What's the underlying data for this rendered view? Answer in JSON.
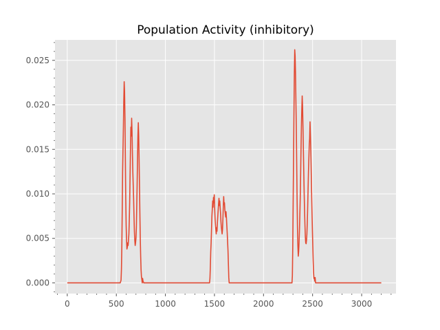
{
  "chart_data": {
    "type": "line",
    "title": "Population Activity (inhibitory)",
    "xlabel": "",
    "ylabel": "",
    "xlim": [
      -125,
      3350
    ],
    "ylim": [
      -0.0012,
      0.0273
    ],
    "xticks": [
      0,
      500,
      1000,
      1500,
      2000,
      2500,
      3000
    ],
    "xtick_labels": [
      "0",
      "500",
      "1000",
      "1500",
      "2000",
      "2500",
      "3000"
    ],
    "yticks": [
      0.0,
      0.005,
      0.01,
      0.015,
      0.02,
      0.025
    ],
    "ytick_labels": [
      "0.000",
      "0.005",
      "0.010",
      "0.015",
      "0.020",
      "0.025"
    ],
    "grid": true,
    "colors": {
      "line": "#e24a33",
      "background": "#e5e5e5",
      "grid": "#ffffff"
    },
    "series": [
      {
        "points": [
          [
            0,
            0
          ],
          [
            540,
            0
          ],
          [
            548,
            0.0003
          ],
          [
            552,
            0.0015
          ],
          [
            556,
            0.004
          ],
          [
            560,
            0.008
          ],
          [
            564,
            0.0125
          ],
          [
            568,
            0.015
          ],
          [
            572,
            0.0175
          ],
          [
            576,
            0.0205
          ],
          [
            580,
            0.0226
          ],
          [
            584,
            0.0215
          ],
          [
            588,
            0.0185
          ],
          [
            592,
            0.014
          ],
          [
            596,
            0.0095
          ],
          [
            600,
            0.0065
          ],
          [
            604,
            0.0048
          ],
          [
            608,
            0.0038
          ],
          [
            612,
            0.004
          ],
          [
            616,
            0.0045
          ],
          [
            620,
            0.0042
          ],
          [
            624,
            0.0048
          ],
          [
            628,
            0.0055
          ],
          [
            632,
            0.007
          ],
          [
            636,
            0.009
          ],
          [
            640,
            0.012
          ],
          [
            644,
            0.015
          ],
          [
            648,
            0.0175
          ],
          [
            652,
            0.0165
          ],
          [
            656,
            0.0185
          ],
          [
            660,
            0.017
          ],
          [
            664,
            0.0145
          ],
          [
            668,
            0.0125
          ],
          [
            672,
            0.011
          ],
          [
            676,
            0.0095
          ],
          [
            680,
            0.0075
          ],
          [
            684,
            0.0058
          ],
          [
            688,
            0.0048
          ],
          [
            692,
            0.0042
          ],
          [
            696,
            0.0045
          ],
          [
            700,
            0.005
          ],
          [
            704,
            0.0062
          ],
          [
            708,
            0.0085
          ],
          [
            712,
            0.011
          ],
          [
            716,
            0.014
          ],
          [
            720,
            0.0165
          ],
          [
            724,
            0.018
          ],
          [
            728,
            0.0165
          ],
          [
            732,
            0.014
          ],
          [
            736,
            0.011
          ],
          [
            740,
            0.0078
          ],
          [
            744,
            0.005
          ],
          [
            748,
            0.003
          ],
          [
            752,
            0.0015
          ],
          [
            756,
            0.0007
          ],
          [
            760,
            0.0004
          ],
          [
            764,
            0.0
          ],
          [
            768,
            0.0005
          ],
          [
            772,
            0.0002
          ],
          [
            780,
            0.0
          ],
          [
            1450,
            0
          ],
          [
            1454,
            0.0005
          ],
          [
            1458,
            0.0018
          ],
          [
            1462,
            0.0035
          ],
          [
            1466,
            0.0045
          ],
          [
            1470,
            0.006
          ],
          [
            1474,
            0.0075
          ],
          [
            1478,
            0.0083
          ],
          [
            1482,
            0.0092
          ],
          [
            1486,
            0.0085
          ],
          [
            1490,
            0.0096
          ],
          [
            1494,
            0.009
          ],
          [
            1498,
            0.0099
          ],
          [
            1502,
            0.0084
          ],
          [
            1506,
            0.0072
          ],
          [
            1510,
            0.0065
          ],
          [
            1514,
            0.006
          ],
          [
            1518,
            0.0055
          ],
          [
            1522,
            0.0062
          ],
          [
            1526,
            0.0058
          ],
          [
            1530,
            0.0068
          ],
          [
            1534,
            0.0075
          ],
          [
            1538,
            0.0082
          ],
          [
            1542,
            0.0089
          ],
          [
            1546,
            0.0095
          ],
          [
            1550,
            0.0087
          ],
          [
            1554,
            0.0092
          ],
          [
            1558,
            0.0085
          ],
          [
            1562,
            0.0078
          ],
          [
            1566,
            0.0069
          ],
          [
            1570,
            0.0063
          ],
          [
            1574,
            0.0059
          ],
          [
            1578,
            0.0055
          ],
          [
            1582,
            0.006
          ],
          [
            1586,
            0.0072
          ],
          [
            1590,
            0.0085
          ],
          [
            1594,
            0.0097
          ],
          [
            1598,
            0.0088
          ],
          [
            1602,
            0.009
          ],
          [
            1606,
            0.0082
          ],
          [
            1610,
            0.0078
          ],
          [
            1614,
            0.0074
          ],
          [
            1618,
            0.008
          ],
          [
            1622,
            0.0073
          ],
          [
            1626,
            0.0064
          ],
          [
            1630,
            0.0056
          ],
          [
            1634,
            0.0046
          ],
          [
            1638,
            0.0036
          ],
          [
            1642,
            0.0021
          ],
          [
            1646,
            0.0006
          ],
          [
            1650,
            0.0
          ],
          [
            2290,
            0
          ],
          [
            2294,
            0.0008
          ],
          [
            2298,
            0.004
          ],
          [
            2302,
            0.009
          ],
          [
            2306,
            0.014
          ],
          [
            2310,
            0.019
          ],
          [
            2314,
            0.0235
          ],
          [
            2318,
            0.0262
          ],
          [
            2322,
            0.0255
          ],
          [
            2326,
            0.0235
          ],
          [
            2330,
            0.0205
          ],
          [
            2334,
            0.0175
          ],
          [
            2338,
            0.0135
          ],
          [
            2342,
            0.0095
          ],
          [
            2346,
            0.0062
          ],
          [
            2350,
            0.0042
          ],
          [
            2354,
            0.003
          ],
          [
            2358,
            0.0035
          ],
          [
            2362,
            0.0045
          ],
          [
            2366,
            0.0058
          ],
          [
            2370,
            0.0075
          ],
          [
            2374,
            0.0095
          ],
          [
            2378,
            0.012
          ],
          [
            2382,
            0.015
          ],
          [
            2386,
            0.0175
          ],
          [
            2390,
            0.0195
          ],
          [
            2394,
            0.021
          ],
          [
            2398,
            0.0198
          ],
          [
            2402,
            0.0175
          ],
          [
            2406,
            0.015
          ],
          [
            2410,
            0.0125
          ],
          [
            2414,
            0.0102
          ],
          [
            2418,
            0.0082
          ],
          [
            2422,
            0.0066
          ],
          [
            2426,
            0.0052
          ],
          [
            2430,
            0.0045
          ],
          [
            2434,
            0.0044
          ],
          [
            2438,
            0.0048
          ],
          [
            2442,
            0.0055
          ],
          [
            2446,
            0.0068
          ],
          [
            2450,
            0.0085
          ],
          [
            2454,
            0.0105
          ],
          [
            2458,
            0.0125
          ],
          [
            2462,
            0.014
          ],
          [
            2466,
            0.0155
          ],
          [
            2470,
            0.0162
          ],
          [
            2474,
            0.0181
          ],
          [
            2478,
            0.0165
          ],
          [
            2482,
            0.0148
          ],
          [
            2486,
            0.0125
          ],
          [
            2490,
            0.0102
          ],
          [
            2494,
            0.008
          ],
          [
            2498,
            0.006
          ],
          [
            2502,
            0.0042
          ],
          [
            2506,
            0.0025
          ],
          [
            2510,
            0.0012
          ],
          [
            2514,
            0.0005
          ],
          [
            2518,
            0.0006
          ],
          [
            2522,
            0.0002
          ],
          [
            2526,
            0.0006
          ],
          [
            2530,
            0.0
          ],
          [
            3200,
            0
          ]
        ]
      }
    ]
  }
}
